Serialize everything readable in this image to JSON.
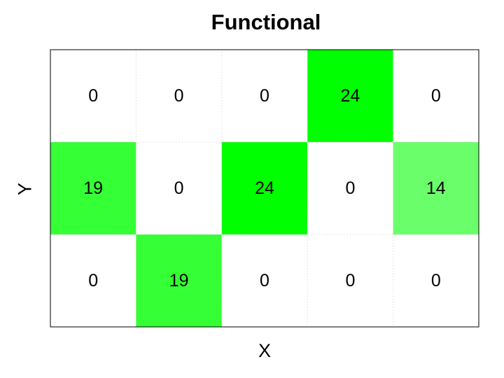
{
  "chart_data": {
    "type": "heatmap",
    "title": "Functional",
    "xlabel": "X",
    "ylabel": "Y",
    "columns": 5,
    "rows": 3,
    "values": [
      [
        0,
        0,
        0,
        24,
        0
      ],
      [
        19,
        0,
        24,
        0,
        14
      ],
      [
        0,
        19,
        0,
        0,
        0
      ]
    ],
    "color_min": "#ffffff",
    "color_max": "#00ff00",
    "value_max": 24,
    "grid": "dotted"
  }
}
